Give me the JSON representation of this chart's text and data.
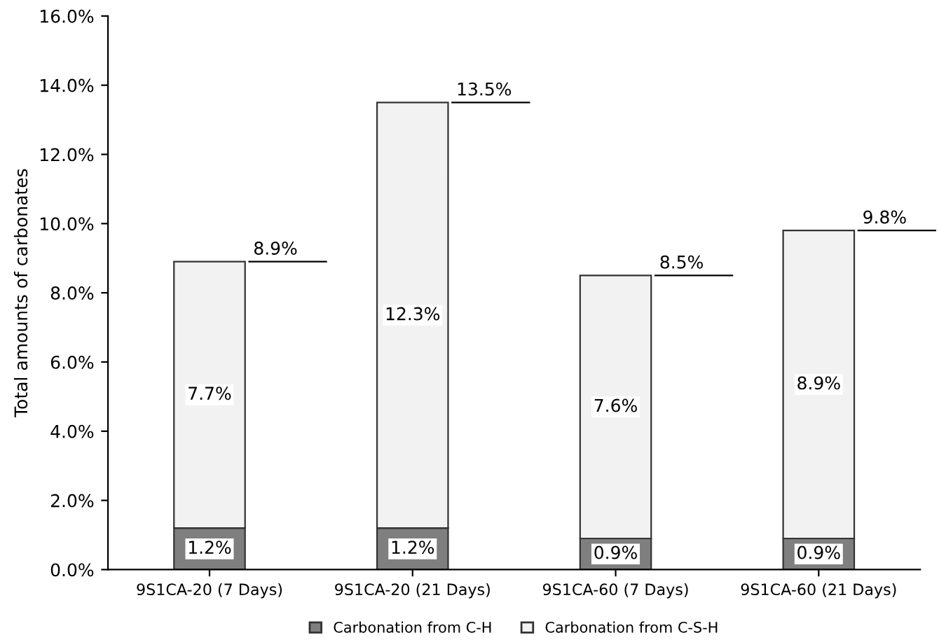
{
  "chart_data": {
    "type": "bar",
    "stacked": true,
    "ylabel": "Total amounts of carbonates",
    "categories": [
      "9S1CA-20 (7 Days)",
      "9S1CA-20 (21 Days)",
      "9S1CA-60 (7 Days)",
      "9S1CA-60 (21 Days)"
    ],
    "series": [
      {
        "name": "Carbonation from C-H",
        "color": "#7f7f7f",
        "values": [
          1.2,
          1.2,
          0.9,
          0.9
        ],
        "value_labels": [
          "1.2%",
          "1.2%",
          "0.9%",
          "0.9%"
        ]
      },
      {
        "name": "Carbonation from C-S-H",
        "color": "#f2f2f2",
        "values": [
          7.7,
          12.3,
          7.6,
          8.9
        ],
        "value_labels": [
          "7.7%",
          "12.3%",
          "7.6%",
          "8.9%"
        ]
      }
    ],
    "totals": [
      "8.9%",
      "13.5%",
      "8.5%",
      "9.8%"
    ],
    "ylim": [
      0,
      16
    ],
    "yticks": [
      {
        "value": 0,
        "label": "0.0%"
      },
      {
        "value": 2,
        "label": "2.0%"
      },
      {
        "value": 4,
        "label": "4.0%"
      },
      {
        "value": 6,
        "label": "6.0%"
      },
      {
        "value": 8,
        "label": "8.0%"
      },
      {
        "value": 10,
        "label": "10.0%"
      },
      {
        "value": 12,
        "label": "12.0%"
      },
      {
        "value": 14,
        "label": "14.0%"
      },
      {
        "value": 16,
        "label": "16.0%"
      }
    ],
    "grid": false,
    "legend": "bottom"
  }
}
